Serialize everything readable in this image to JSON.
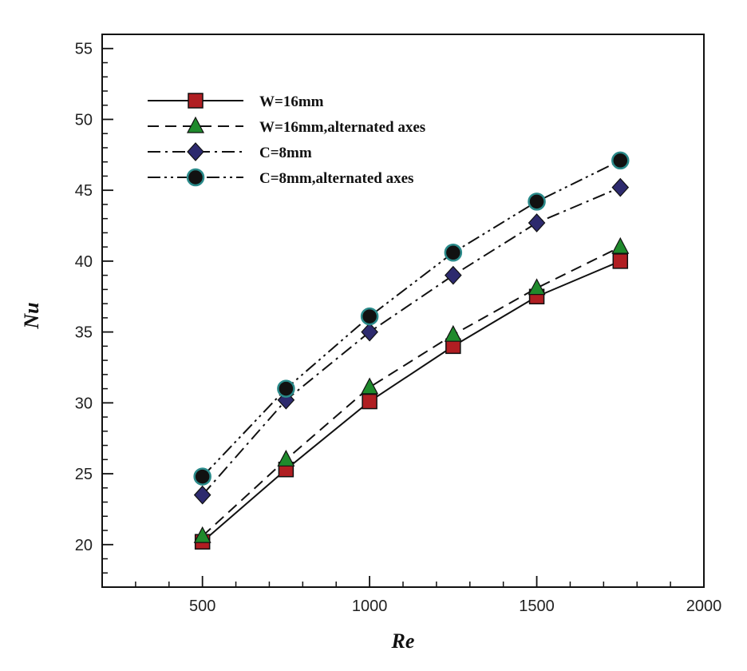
{
  "chart_data": {
    "type": "line",
    "xlabel": "Re",
    "ylabel": "Nu",
    "xlim": [
      200,
      2000
    ],
    "ylim": [
      17,
      56
    ],
    "xticks": [
      500,
      1000,
      1500,
      2000
    ],
    "yticks": [
      20,
      25,
      30,
      35,
      40,
      45,
      50,
      55
    ],
    "xminor_step": 100,
    "yminor_step": 1,
    "grid": false,
    "legend_position": "top-left",
    "series": [
      {
        "name": "W=16mm",
        "line_style": "solid",
        "marker": "square",
        "marker_color": "#b01e22",
        "x": [
          500,
          750,
          1000,
          1250,
          1500,
          1750
        ],
        "y": [
          20.2,
          25.3,
          30.1,
          34.0,
          37.5,
          40.0
        ]
      },
      {
        "name": "W=16mm,alternated axes",
        "line_style": "dashed",
        "marker": "triangle",
        "marker_color": "#1f8a2c",
        "x": [
          500,
          750,
          1000,
          1250,
          1500,
          1750
        ],
        "y": [
          20.6,
          26.0,
          31.1,
          34.8,
          38.1,
          41.0
        ]
      },
      {
        "name": "C=8mm",
        "line_style": "dashdot",
        "marker": "diamond",
        "marker_color": "#2d2a6e",
        "x": [
          500,
          750,
          1000,
          1250,
          1500,
          1750
        ],
        "y": [
          23.5,
          30.2,
          35.0,
          39.0,
          42.7,
          45.2
        ]
      },
      {
        "name": "C=8mm,alternated axes",
        "line_style": "dashdotdot",
        "marker": "circle",
        "marker_color": "#111111",
        "marker_edge": "#2a8a8a",
        "x": [
          500,
          750,
          1000,
          1250,
          1500,
          1750
        ],
        "y": [
          24.8,
          31.0,
          36.1,
          40.6,
          44.2,
          47.1
        ]
      }
    ]
  }
}
